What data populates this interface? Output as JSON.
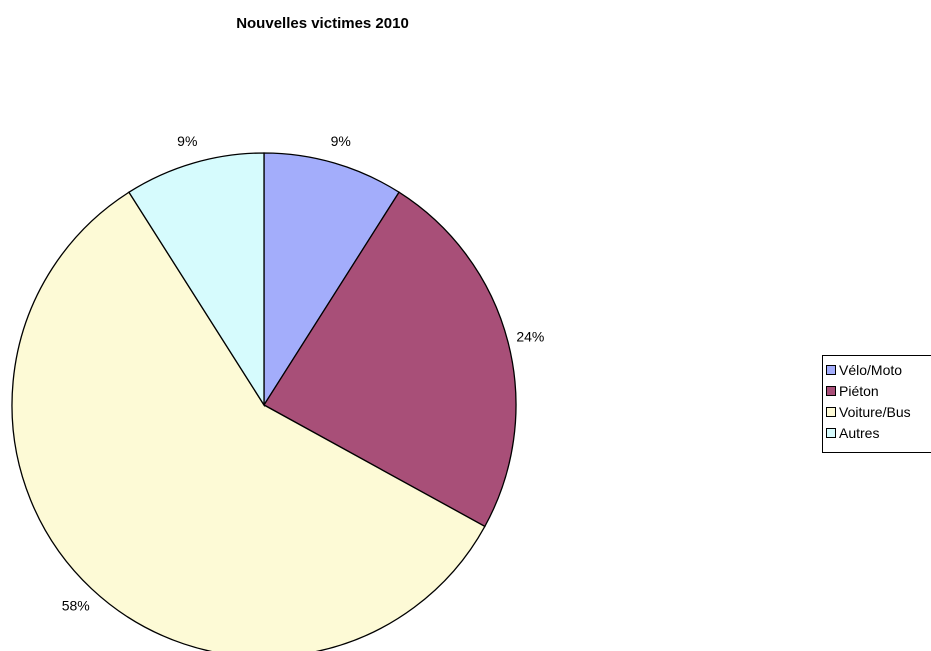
{
  "chart_data": {
    "type": "pie",
    "title": "Nouvelles victimes 2010",
    "categories": [
      "Vélo/Moto",
      "Piéton",
      "Voiture/Bus",
      "Autres"
    ],
    "values": [
      9,
      24,
      58,
      9
    ],
    "value_labels": [
      "9%",
      "24%",
      "58%",
      "9%"
    ],
    "colors": [
      "#a3adfb",
      "#a84f78",
      "#fdfad6",
      "#d6fbfd"
    ],
    "legend_position": "right"
  }
}
